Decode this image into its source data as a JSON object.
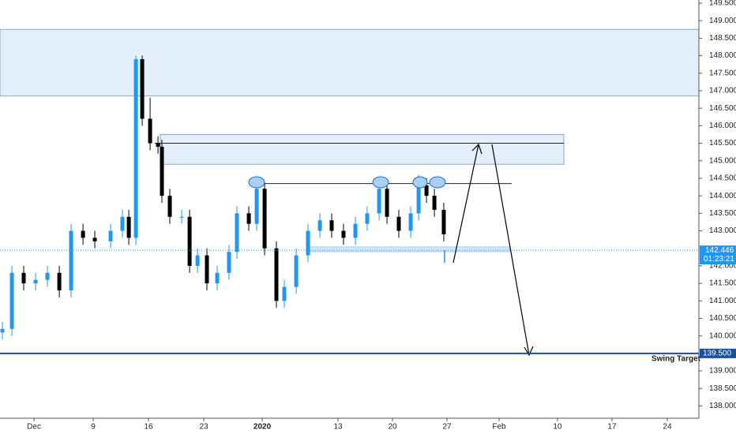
{
  "chart_data": {
    "type": "candlestick",
    "x": [
      -2.76,
      -1.93,
      -0.9,
      0.14,
      1.17,
      2.21,
      3.24,
      4.28,
      5.31,
      6.69,
      7.72,
      8.28,
      8.9,
      9.45,
      10.14,
      10.83,
      11.17,
      11.86,
      12.9,
      13.59,
      14.28,
      15.1,
      16.0,
      17.03,
      17.72,
      18.76,
      19.45,
      20.14,
      21.17,
      21.86,
      22.9,
      23.93,
      24.97,
      26.0,
      27.03,
      28.07,
      29.1,
      30.14,
      30.83,
      31.86,
      32.9,
      33.59,
      34.28,
      34.97,
      35.79
    ],
    "open": [
      140.1,
      140.2,
      141.8,
      141.5,
      141.6,
      141.8,
      141.3,
      143.0,
      142.8,
      142.7,
      143.0,
      143.4,
      142.8,
      147.9,
      146.2,
      145.5,
      145.4,
      144.0,
      143.4,
      143.4,
      142.0,
      142.3,
      141.5,
      141.8,
      142.4,
      143.5,
      143.2,
      144.2,
      142.5,
      141.0,
      141.4,
      142.3,
      143.0,
      143.3,
      143.0,
      142.8,
      143.2,
      143.5,
      144.2,
      143.4,
      143.0,
      143.5,
      144.3,
      144.0,
      143.6
    ],
    "high": [
      140.4,
      142.0,
      142.0,
      141.8,
      142.0,
      142.0,
      143.2,
      143.2,
      143.0,
      143.2,
      143.6,
      143.6,
      148.0,
      148.0,
      146.8,
      145.7,
      145.6,
      144.2,
      143.6,
      143.6,
      142.5,
      142.5,
      142.0,
      142.6,
      143.7,
      143.7,
      144.4,
      144.4,
      142.7,
      141.6,
      142.5,
      143.2,
      143.5,
      143.5,
      143.2,
      143.4,
      143.7,
      144.4,
      144.4,
      143.6,
      143.7,
      144.6,
      144.5,
      144.2,
      143.8
    ],
    "low": [
      139.9,
      140.0,
      141.3,
      141.3,
      141.4,
      141.1,
      141.1,
      142.6,
      142.5,
      142.5,
      142.8,
      142.6,
      142.6,
      146.0,
      145.3,
      145.2,
      143.8,
      143.2,
      143.2,
      141.8,
      141.8,
      141.3,
      141.3,
      141.6,
      142.2,
      143.0,
      143.0,
      142.3,
      140.8,
      140.8,
      141.2,
      142.1,
      142.8,
      142.8,
      142.6,
      142.6,
      143.0,
      143.3,
      143.2,
      142.8,
      142.8,
      143.3,
      143.8,
      143.4,
      142.7
    ],
    "close": [
      140.2,
      141.8,
      141.5,
      141.6,
      141.8,
      141.3,
      143.0,
      142.8,
      142.7,
      143.0,
      143.4,
      142.8,
      147.9,
      146.2,
      145.5,
      145.4,
      144.0,
      143.4,
      143.4,
      142.0,
      142.3,
      141.5,
      141.8,
      142.4,
      143.5,
      143.2,
      144.2,
      142.5,
      141.0,
      141.4,
      142.3,
      143.0,
      143.3,
      143.0,
      142.8,
      143.2,
      143.5,
      144.2,
      143.4,
      143.0,
      143.5,
      144.3,
      144.0,
      143.6,
      142.9
    ],
    "up_color": "#2196f3",
    "down_color": "#000000",
    "xlim": [
      -2.97,
      58.07
    ],
    "xticks": [
      {
        "value": 0,
        "label": "Dec"
      },
      {
        "value": 5.17,
        "label": "9"
      },
      {
        "value": 10.0,
        "label": "16"
      },
      {
        "value": 14.83,
        "label": "23"
      },
      {
        "value": 19.93,
        "label": "2020"
      },
      {
        "value": 26.55,
        "label": "13"
      },
      {
        "value": 31.31,
        "label": "20"
      },
      {
        "value": 36.07,
        "label": "27"
      },
      {
        "value": 40.62,
        "label": "Feb"
      },
      {
        "value": 45.72,
        "label": "10"
      },
      {
        "value": 50.48,
        "label": "17"
      },
      {
        "value": 55.31,
        "label": "24"
      }
    ],
    "ylim": [
      137.65,
      149.59
    ],
    "yticks": [
      {
        "value": 138.0,
        "label": "138.000"
      },
      {
        "value": 138.5,
        "label": "138.500"
      },
      {
        "value": 139.0,
        "label": "139.000"
      },
      {
        "value": 140.0,
        "label": "140.000"
      },
      {
        "value": 140.5,
        "label": "140.500"
      },
      {
        "value": 141.0,
        "label": "141.000"
      },
      {
        "value": 141.5,
        "label": "141.500"
      },
      {
        "value": 142.0,
        "label": "142.000"
      },
      {
        "value": 143.0,
        "label": "143.000"
      },
      {
        "value": 143.5,
        "label": "143.500"
      },
      {
        "value": 144.0,
        "label": "144.000"
      },
      {
        "value": 144.5,
        "label": "144.500"
      },
      {
        "value": 145.0,
        "label": "145.000"
      },
      {
        "value": 145.5,
        "label": "145.500"
      },
      {
        "value": 146.0,
        "label": "146.000"
      },
      {
        "value": 146.5,
        "label": "146.500"
      },
      {
        "value": 147.0,
        "label": "147.000"
      },
      {
        "value": 147.5,
        "label": "147.500"
      },
      {
        "value": 148.0,
        "label": "148.000"
      },
      {
        "value": 148.5,
        "label": "148.500"
      },
      {
        "value": 149.0,
        "label": "149.000"
      },
      {
        "value": 149.5,
        "label": "149.500"
      }
    ],
    "zones": [
      {
        "low": 146.85,
        "high": 148.75,
        "x0": -2.97,
        "x1": 58.07
      },
      {
        "low": 144.9,
        "high": 145.75,
        "x0": 11.03,
        "x1": 46.28
      }
    ],
    "levels": [
      {
        "value": 145.5,
        "x0": 10.55,
        "x1": 46.28
      },
      {
        "value": 144.35,
        "x0": 19.45,
        "x1": 41.72
      }
    ],
    "swing_target": {
      "label": "Swing Target",
      "value": 139.5,
      "value_label": "139.500"
    },
    "current_price": {
      "value": 142.446,
      "timer": "01:23:21"
    }
  }
}
